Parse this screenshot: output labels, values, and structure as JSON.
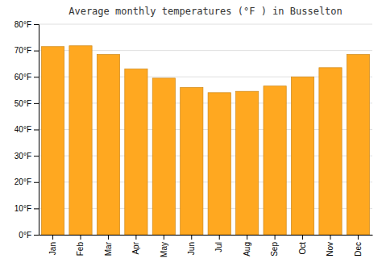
{
  "chart_data": {
    "type": "bar",
    "title": "Average monthly temperatures (°F ) in Busselton",
    "categories": [
      "Jan",
      "Feb",
      "Mar",
      "Apr",
      "May",
      "Jun",
      "Jul",
      "Aug",
      "Sep",
      "Oct",
      "Nov",
      "Dec"
    ],
    "values": [
      71.5,
      71.8,
      68.5,
      63.0,
      59.5,
      56.0,
      54.0,
      54.5,
      56.5,
      60.0,
      63.5,
      68.5
    ],
    "color": "#FFA820",
    "ylim": [
      0,
      80
    ],
    "yticks": [
      {
        "value": 0,
        "label": "0°F"
      },
      {
        "value": 10,
        "label": "10°F"
      },
      {
        "value": 20,
        "label": "20°F"
      },
      {
        "value": 30,
        "label": "30°F"
      },
      {
        "value": 40,
        "label": "40°F"
      },
      {
        "value": 50,
        "label": "50°F"
      },
      {
        "value": 60,
        "label": "60°F"
      },
      {
        "value": 70,
        "label": "70°F"
      },
      {
        "value": 80,
        "label": "80°F"
      }
    ],
    "grid": true
  }
}
